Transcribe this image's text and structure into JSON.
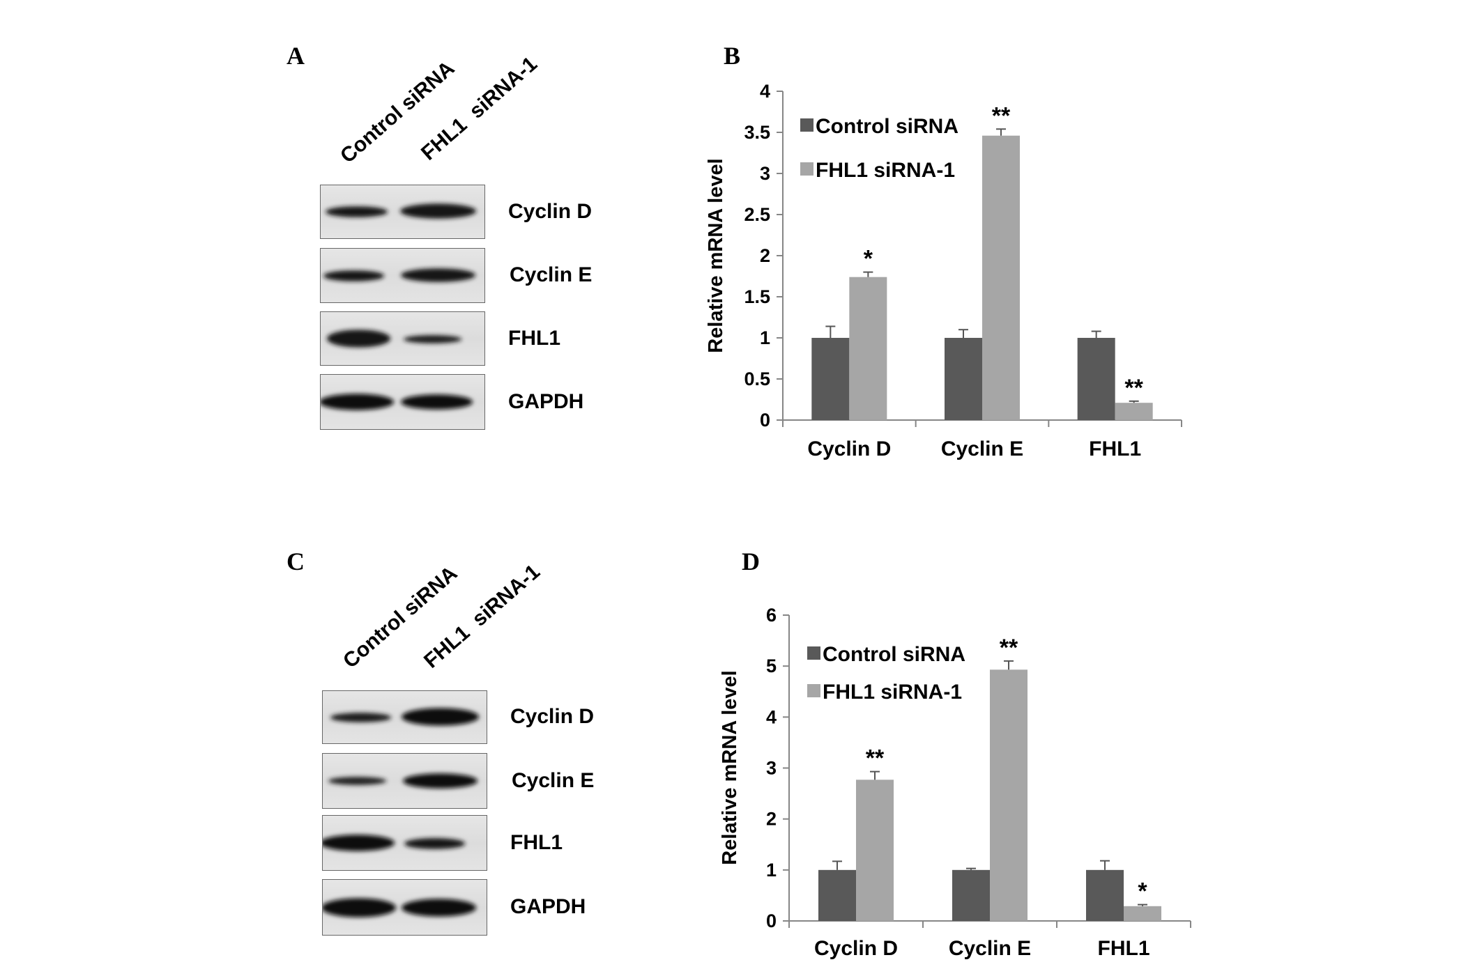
{
  "figure": {
    "blots": [
      {
        "panel_label": "A",
        "lanes": [
          "Control siRNA",
          "FHL1  siRNA-1"
        ],
        "rows": [
          "Cyclin D",
          "Cyclin E",
          "FHL1",
          "GAPDH"
        ]
      },
      {
        "panel_label": "C",
        "lanes": [
          "Control siRNA",
          "FHL1  siRNA-1"
        ],
        "rows": [
          "Cyclin D",
          "Cyclin E",
          "FHL1",
          "GAPDH"
        ]
      }
    ]
  },
  "colors": {
    "control_bar": "#595959",
    "fhl1_bar": "#a6a6a6",
    "axis": "#868686",
    "error_bar": "#555555"
  },
  "chart_data": [
    {
      "panel_label": "B",
      "type": "bar",
      "categories": [
        "Cyclin D",
        "Cyclin E",
        "FHL1"
      ],
      "series": [
        {
          "name": "Control siRNA",
          "values": [
            1,
            1,
            1
          ],
          "errors": [
            0.14,
            0.1,
            0.08
          ]
        },
        {
          "name": "FHL1 siRNA-1",
          "values": [
            1.74,
            3.46,
            0.21
          ],
          "errors": [
            0.06,
            0.08,
            0.02
          ]
        }
      ],
      "annotations": [
        "*",
        "**",
        "**"
      ],
      "xlabel": "",
      "ylabel": "Relative mRNA level",
      "ylim": [
        0,
        4
      ],
      "yticks": [
        "0",
        "0.5",
        "1",
        "1.5",
        "2",
        "2.5",
        "3",
        "3.5",
        "4"
      ],
      "grid": false,
      "legend": "top-left"
    },
    {
      "panel_label": "D",
      "type": "bar",
      "categories": [
        "Cyclin D",
        "Cyclin E",
        "FHL1"
      ],
      "series": [
        {
          "name": "Control siRNA",
          "values": [
            1,
            1,
            1
          ],
          "errors": [
            0.17,
            0.03,
            0.18
          ]
        },
        {
          "name": "FHL1 siRNA-1",
          "values": [
            2.77,
            4.93,
            0.29
          ],
          "errors": [
            0.16,
            0.17,
            0.03
          ]
        }
      ],
      "annotations": [
        "**",
        "**",
        "*"
      ],
      "xlabel": "",
      "ylabel": "Relative mRNA level",
      "ylim": [
        0,
        6
      ],
      "yticks": [
        "0",
        "1",
        "2",
        "3",
        "4",
        "5",
        "6"
      ],
      "grid": false,
      "legend": "top-left"
    }
  ]
}
